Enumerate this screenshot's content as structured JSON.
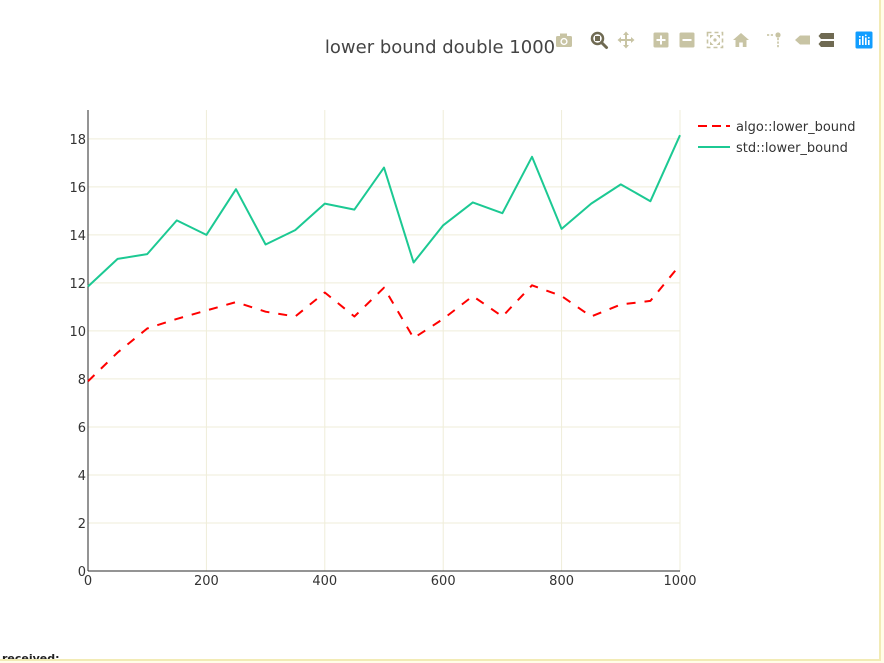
{
  "modebar": {
    "buttons": [
      {
        "icon": "camera-icon",
        "title": "Download plot as a png"
      },
      {
        "icon": "zoom-icon",
        "title": "Zoom"
      },
      {
        "icon": "pan-icon",
        "title": "Pan"
      },
      {
        "icon": "zoom-in-icon",
        "title": "Zoom in"
      },
      {
        "icon": "zoom-out-icon",
        "title": "Zoom out"
      },
      {
        "icon": "autoscale-icon",
        "title": "Autoscale"
      },
      {
        "icon": "home-icon",
        "title": "Reset axes"
      },
      {
        "icon": "spike-lines-icon",
        "title": "Toggle Spike Lines"
      },
      {
        "icon": "hover-closest-icon",
        "title": "Show closest data on hover"
      },
      {
        "icon": "hover-compare-icon",
        "title": "Compare data on hover"
      },
      {
        "icon": "plotly-logo-icon",
        "title": "Produced with Plotly"
      }
    ],
    "icon_color": "#c8c4a4",
    "active_color": "#6f6a52",
    "logo_color": "#119dff"
  },
  "footer_text": "received:",
  "chart_data": {
    "type": "line",
    "title": "lower bound double 1000",
    "xlabel": "",
    "ylabel": "",
    "xlim": [
      0,
      1000
    ],
    "ylim": [
      0,
      19.2
    ],
    "xticks": [
      0,
      200,
      400,
      600,
      800,
      1000
    ],
    "yticks": [
      0,
      2,
      4,
      6,
      8,
      10,
      12,
      14,
      16,
      18
    ],
    "grid": true,
    "legend": "top-right",
    "x": [
      0,
      50,
      100,
      150,
      200,
      250,
      300,
      350,
      400,
      450,
      500,
      550,
      600,
      650,
      700,
      750,
      800,
      850,
      900,
      950,
      1000
    ],
    "series": [
      {
        "name": "algo::lower_bound",
        "dash": "dash",
        "color": "#ff0000",
        "values": [
          7.9,
          9.1,
          10.1,
          10.5,
          10.85,
          11.2,
          10.8,
          10.6,
          11.6,
          10.6,
          11.8,
          9.7,
          10.5,
          11.45,
          10.6,
          11.9,
          11.45,
          10.6,
          11.1,
          11.25,
          12.75
        ]
      },
      {
        "name": "std::lower_bound",
        "dash": "solid",
        "color": "#1cc993",
        "values": [
          11.85,
          13.0,
          13.2,
          14.6,
          14.0,
          15.9,
          13.6,
          14.2,
          15.3,
          15.05,
          16.8,
          12.85,
          14.4,
          15.35,
          14.9,
          17.25,
          14.25,
          15.3,
          16.1,
          15.4,
          18.15
        ]
      }
    ],
    "colors": {
      "grid": "#efedd9",
      "axis": "#2a2a2a",
      "text": "#333333",
      "title": "#444444",
      "bg": "#ffffff"
    }
  }
}
